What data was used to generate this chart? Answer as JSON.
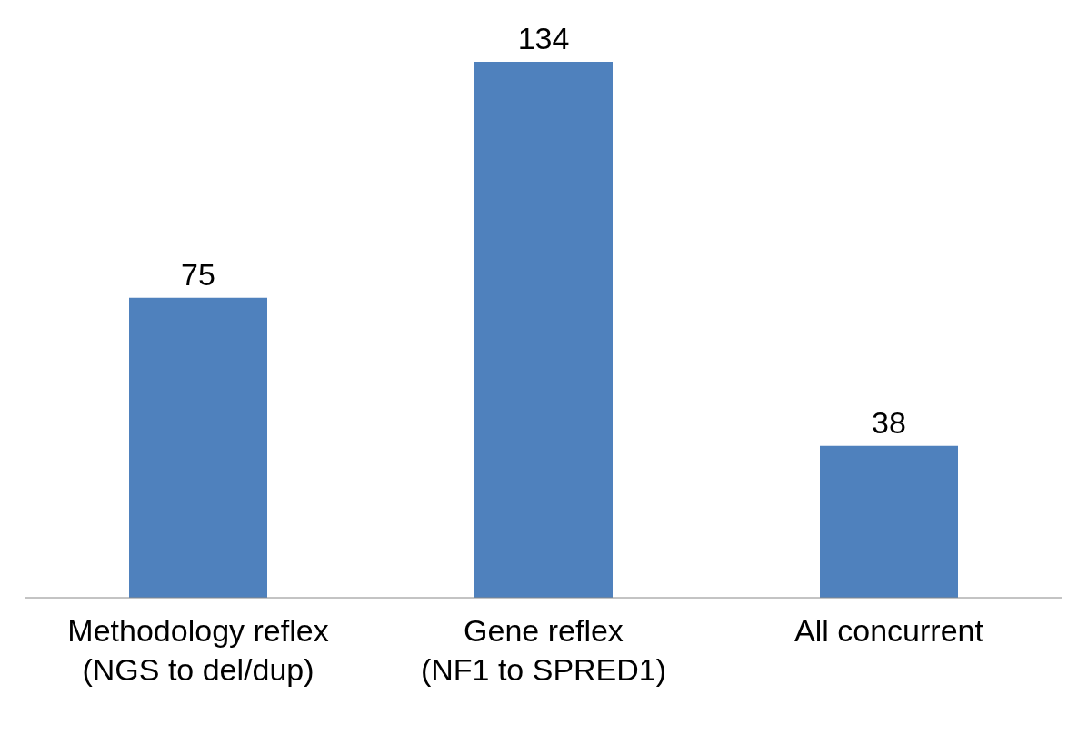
{
  "chart_data": {
    "type": "bar",
    "categories": [
      "Methodology reflex\n(NGS to del/dup)",
      "Gene reflex\n(NF1 to SPRED1)",
      "All concurrent"
    ],
    "values": [
      75,
      134,
      38
    ],
    "color": "#4f81bd",
    "data_labels": true
  }
}
